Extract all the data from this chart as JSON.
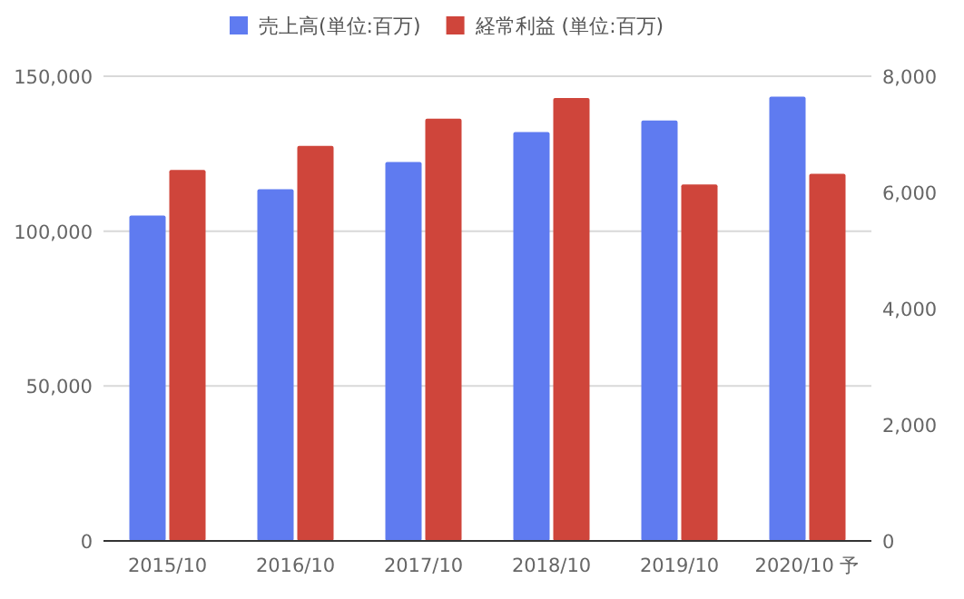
{
  "chart_data": {
    "type": "bar",
    "categories": [
      "2015/10",
      "2016/10",
      "2017/10",
      "2018/10",
      "2019/10",
      "2020/10 予"
    ],
    "series": [
      {
        "name": "売上高(単位:百万)",
        "color": "#5f7bf0",
        "values": [
          105000,
          113500,
          122300,
          132000,
          135700,
          143400
        ]
      },
      {
        "name": "経常利益 (単位:百万)",
        "color": "#cf453b",
        "axis": "y2",
        "values": [
          6385,
          6800,
          7270,
          7625,
          6135,
          6320
        ]
      }
    ],
    "ylim": [
      0,
      150000
    ],
    "yticks": [
      {
        "value": 0,
        "label": "0"
      },
      {
        "value": 50000,
        "label": "50,000"
      },
      {
        "value": 100000,
        "label": "100,000"
      },
      {
        "value": 150000,
        "label": "150,000"
      }
    ],
    "y2lim": [
      0,
      8000
    ],
    "y2ticks": [
      {
        "value": 0,
        "label": "0"
      },
      {
        "value": 2000,
        "label": "2,000"
      },
      {
        "value": 4000,
        "label": "4,000"
      },
      {
        "value": 6000,
        "label": "6,000"
      },
      {
        "value": 8000,
        "label": "8,000"
      }
    ],
    "grid": "y",
    "legend": "top"
  }
}
